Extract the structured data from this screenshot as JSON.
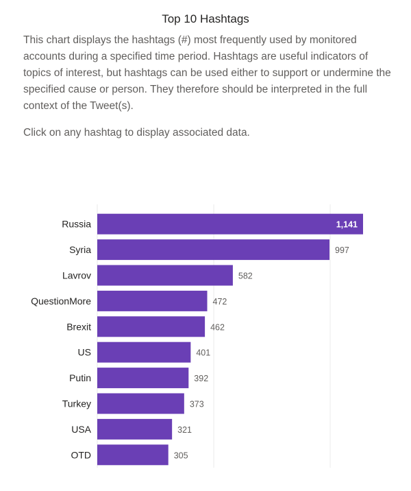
{
  "header": {
    "title": "Top 10 Hashtags",
    "description": "This chart displays the hashtags (#) most frequently used by monitored accounts during a specified time period. Hashtags are useful indicators of topics of interest, but hashtags can be used either to support or undermine the specified cause or person. They therefore should be interpreted in the full context of the Tweet(s).",
    "hint": "Click on any hashtag to display associated data."
  },
  "colors": {
    "bar": "#6a3fb5",
    "grid": "#eaeaea",
    "text": "#252423",
    "muted": "#605e5c"
  },
  "chart_data": {
    "type": "bar",
    "orientation": "horizontal",
    "categories": [
      "Russia",
      "Syria",
      "Lavrov",
      "QuestionMore",
      "Brexit",
      "US",
      "Putin",
      "Turkey",
      "USA",
      "OTD"
    ],
    "values": [
      1141,
      997,
      582,
      472,
      462,
      401,
      392,
      373,
      321,
      305
    ],
    "value_labels": [
      "1,141",
      "997",
      "582",
      "472",
      "462",
      "401",
      "392",
      "373",
      "321",
      "305"
    ],
    "xticks": [
      0,
      500,
      1000
    ],
    "xtick_labels": [
      "0",
      "500",
      "1,000"
    ],
    "xlim": [
      0,
      1141
    ],
    "grid": true
  }
}
